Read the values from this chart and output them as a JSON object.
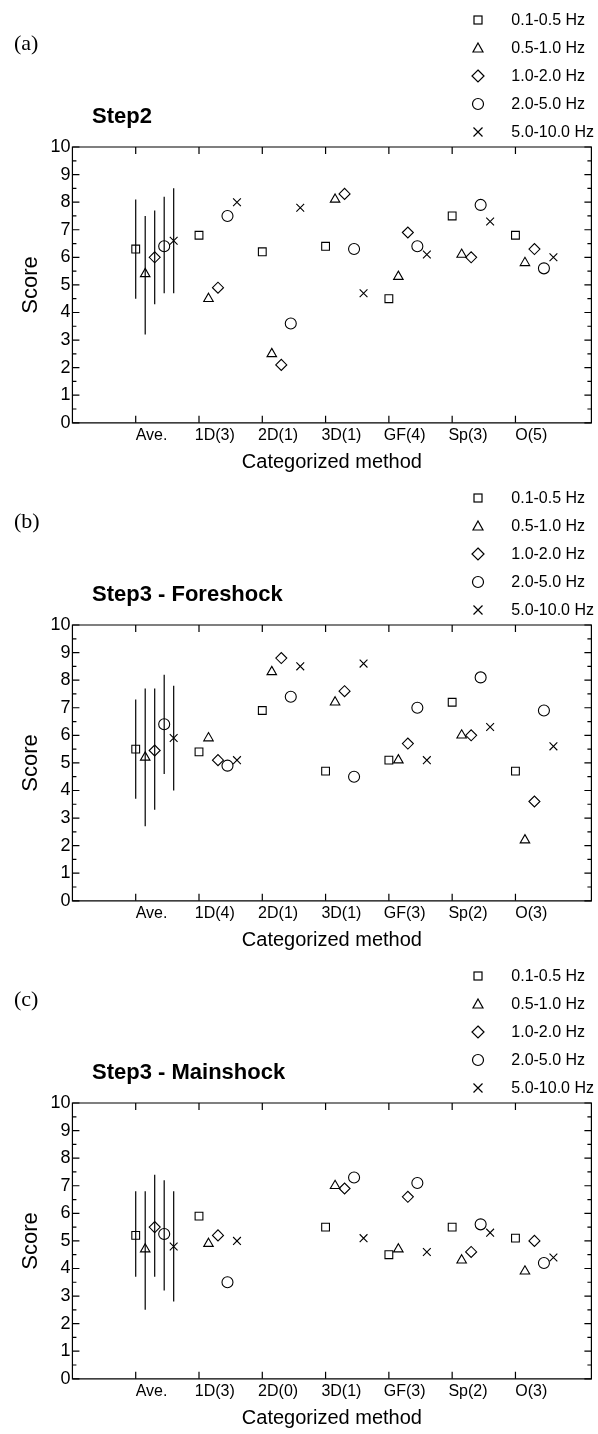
{
  "chart_data": [
    {
      "type": "scatter",
      "title": "Step2",
      "xlabel": "Categorized method",
      "ylabel": "Score",
      "annotations": [
        "(a)"
      ],
      "legend": "top right",
      "grid": false,
      "ylim": [
        0,
        10
      ],
      "yticks": [
        0,
        1,
        2,
        3,
        4,
        5,
        6,
        7,
        8,
        9,
        10
      ],
      "categories": [
        "Ave.",
        "1D(3)",
        "2D(1)",
        "3D(1)",
        "GF(4)",
        "Sp(3)",
        "O(5)"
      ],
      "series": [
        {
          "name": "0.1-0.5 Hz",
          "color": "#000000",
          "marker": "square",
          "values": [
            6.3,
            6.8,
            6.2,
            6.4,
            4.5,
            7.5,
            6.8
          ],
          "errors": [
            [
              4.5,
              8.1
            ],
            null,
            null,
            null,
            null,
            null,
            null
          ]
        },
        {
          "name": "0.5-1.0 Hz",
          "color": "#000000",
          "marker": "triangle",
          "values": [
            5.4,
            4.5,
            2.5,
            8.1,
            5.3,
            6.1,
            5.8
          ],
          "errors": [
            [
              3.2,
              7.5
            ],
            null,
            null,
            null,
            null,
            null,
            null
          ]
        },
        {
          "name": "1.0-2.0 Hz",
          "color": "#000000",
          "marker": "diamond",
          "values": [
            6.0,
            4.9,
            2.1,
            8.3,
            6.9,
            6.0,
            6.3
          ],
          "errors": [
            [
              4.3,
              7.7
            ],
            null,
            null,
            null,
            null,
            null,
            null
          ]
        },
        {
          "name": "2.0-5.0 Hz",
          "color": "#000000",
          "marker": "circle",
          "values": [
            6.4,
            7.5,
            3.6,
            6.3,
            6.4,
            7.9,
            5.6
          ],
          "errors": [
            [
              4.7,
              8.2
            ],
            null,
            null,
            null,
            null,
            null,
            null
          ]
        },
        {
          "name": "5.0-10.0 Hz",
          "color": "#000000",
          "marker": "cross",
          "values": [
            6.6,
            8.0,
            7.8,
            4.7,
            6.1,
            7.3,
            6.0
          ],
          "errors": [
            [
              4.7,
              8.5
            ],
            null,
            null,
            null,
            null,
            null,
            null
          ]
        }
      ]
    },
    {
      "type": "scatter",
      "title": "Step3 - Foreshock",
      "xlabel": "Categorized method",
      "ylabel": "Score",
      "annotations": [
        "(b)"
      ],
      "legend": "top right",
      "grid": false,
      "ylim": [
        0,
        10
      ],
      "yticks": [
        0,
        1,
        2,
        3,
        4,
        5,
        6,
        7,
        8,
        9,
        10
      ],
      "categories": [
        "Ave.",
        "1D(4)",
        "2D(1)",
        "3D(1)",
        "GF(3)",
        "Sp(2)",
        "O(3)"
      ],
      "series": [
        {
          "name": "0.1-0.5 Hz",
          "color": "#000000",
          "marker": "square",
          "values": [
            5.5,
            5.4,
            6.9,
            4.7,
            5.1,
            7.2,
            4.7
          ],
          "errors": [
            [
              3.7,
              7.3
            ],
            null,
            null,
            null,
            null,
            null,
            null
          ]
        },
        {
          "name": "0.5-1.0 Hz",
          "color": "#000000",
          "marker": "triangle",
          "values": [
            5.2,
            5.9,
            8.3,
            7.2,
            5.1,
            6.0,
            2.2
          ],
          "errors": [
            [
              2.7,
              7.7
            ],
            null,
            null,
            null,
            null,
            null,
            null
          ]
        },
        {
          "name": "1.0-2.0 Hz",
          "color": "#000000",
          "marker": "diamond",
          "values": [
            5.45,
            5.1,
            8.8,
            7.6,
            5.7,
            6.0,
            3.6
          ],
          "errors": [
            [
              3.3,
              7.7
            ],
            null,
            null,
            null,
            null,
            null,
            null
          ]
        },
        {
          "name": "2.0-5.0 Hz",
          "color": "#000000",
          "marker": "circle",
          "values": [
            6.4,
            4.9,
            7.4,
            4.5,
            7.0,
            8.1,
            6.9
          ],
          "errors": [
            [
              4.6,
              8.2
            ],
            null,
            null,
            null,
            null,
            null,
            null
          ]
        },
        {
          "name": "5.0-10.0 Hz",
          "color": "#000000",
          "marker": "cross",
          "values": [
            5.9,
            5.1,
            8.5,
            8.6,
            5.1,
            6.3,
            5.6
          ],
          "errors": [
            [
              4.0,
              7.8
            ],
            null,
            null,
            null,
            null,
            null,
            null
          ]
        }
      ]
    },
    {
      "type": "scatter",
      "title": "Step3 - Mainshock",
      "xlabel": "Categorized method",
      "ylabel": "Score",
      "annotations": [
        "(c)"
      ],
      "legend": "top right",
      "grid": false,
      "ylim": [
        0,
        10
      ],
      "yticks": [
        0,
        1,
        2,
        3,
        4,
        5,
        6,
        7,
        8,
        9,
        10
      ],
      "categories": [
        "Ave.",
        "1D(3)",
        "2D(0)",
        "3D(1)",
        "GF(3)",
        "Sp(2)",
        "O(3)"
      ],
      "series": [
        {
          "name": "0.1-0.5 Hz",
          "color": "#000000",
          "marker": "square",
          "values": [
            5.2,
            5.9,
            null,
            5.5,
            4.5,
            5.5,
            5.1
          ],
          "errors": [
            [
              3.7,
              6.8
            ],
            null,
            null,
            null,
            null,
            null,
            null
          ]
        },
        {
          "name": "0.5-1.0 Hz",
          "color": "#000000",
          "marker": "triangle",
          "values": [
            4.7,
            4.9,
            null,
            7.0,
            4.7,
            4.3,
            3.9
          ],
          "errors": [
            [
              2.5,
              6.8
            ],
            null,
            null,
            null,
            null,
            null,
            null
          ]
        },
        {
          "name": "1.0-2.0 Hz",
          "color": "#000000",
          "marker": "diamond",
          "values": [
            5.5,
            5.2,
            null,
            6.9,
            6.6,
            4.6,
            5.0
          ],
          "errors": [
            [
              3.7,
              7.4
            ],
            null,
            null,
            null,
            null,
            null,
            null
          ]
        },
        {
          "name": "2.0-5.0 Hz",
          "color": "#000000",
          "marker": "circle",
          "values": [
            5.25,
            3.5,
            null,
            7.3,
            7.1,
            5.6,
            4.2
          ],
          "errors": [
            [
              3.2,
              7.2
            ],
            null,
            null,
            null,
            null,
            null,
            null
          ]
        },
        {
          "name": "5.0-10.0 Hz",
          "color": "#000000",
          "marker": "cross",
          "values": [
            4.8,
            5.0,
            null,
            5.1,
            4.6,
            5.3,
            4.4
          ],
          "errors": [
            [
              2.8,
              6.8
            ],
            null,
            null,
            null,
            null,
            null,
            null
          ]
        }
      ]
    }
  ]
}
